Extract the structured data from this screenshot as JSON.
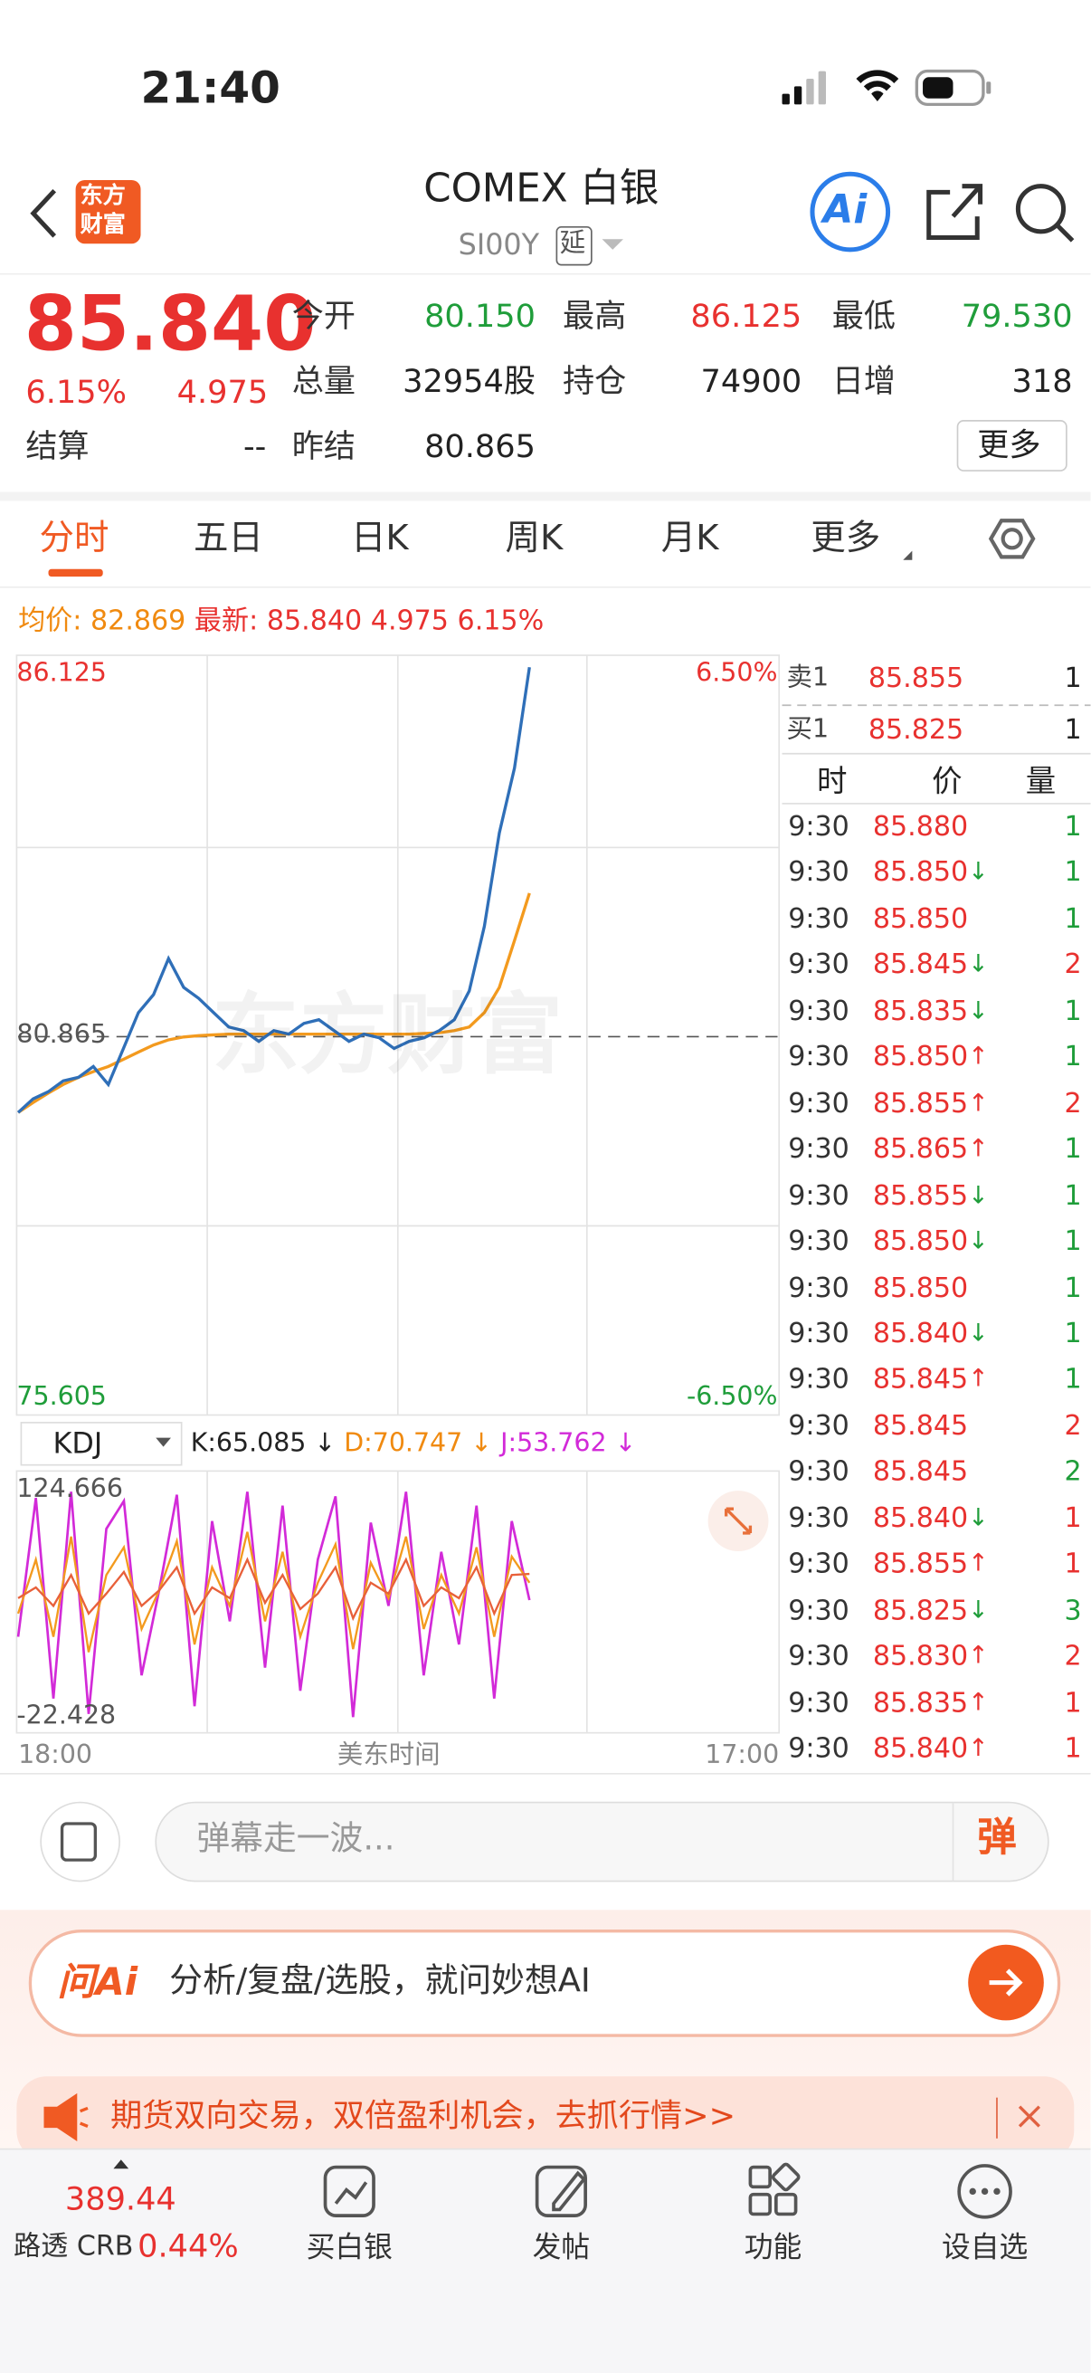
{
  "status_bar": {
    "time": "21:40"
  },
  "header": {
    "logo_top": "东方",
    "logo_bottom": "财富",
    "title": "COMEX 白银",
    "code": "SI00Y",
    "delay_badge": "延",
    "ai_button": "Ai"
  },
  "quote": {
    "price": "85.840",
    "change_pct": "6.15%",
    "change": "4.975",
    "more": "更多",
    "fields": [
      {
        "label": "今开",
        "value": "80.150",
        "color": "#1f9d3a"
      },
      {
        "label": "最高",
        "value": "86.125",
        "color": "#e8312f"
      },
      {
        "label": "最低",
        "value": "79.530",
        "color": "#1f9d3a"
      },
      {
        "label": "总量",
        "value": "32954股",
        "color": "#222222"
      },
      {
        "label": "持仓",
        "value": "74900",
        "color": "#222222"
      },
      {
        "label": "日增",
        "value": "318",
        "color": "#222222"
      },
      {
        "label": "结算",
        "value": "--",
        "color": "#222222"
      },
      {
        "label": "昨结",
        "value": "80.865",
        "color": "#222222"
      }
    ]
  },
  "tabs": [
    "分时",
    "五日",
    "日K",
    "周K",
    "月K",
    "更多"
  ],
  "intraday": {
    "legend": {
      "avg_label": "均价:",
      "avg": "82.869",
      "latest_label": "最新:",
      "latest": "85.840",
      "change": "4.975",
      "change_pct": "6.15%"
    },
    "watermark": "东方财富",
    "ylim": [
      75.605,
      86.125
    ],
    "yticks": [
      86.125,
      80.865,
      75.605
    ],
    "y2lim": [
      -6.5,
      6.5
    ],
    "y2ticks": [
      {
        "value": 6.5,
        "label": "6.50%"
      },
      {
        "value": -6.5,
        "label": "-6.50%"
      }
    ],
    "x_labels": [
      "18:00",
      "美东时间",
      "17:00"
    ],
    "price": {
      "name": "最新",
      "color": "#2f6fb8",
      "values": [
        79.81,
        80.0,
        80.1,
        80.25,
        80.3,
        80.45,
        80.2,
        80.7,
        81.2,
        81.45,
        81.95,
        81.55,
        81.4,
        81.2,
        81.0,
        80.95,
        80.8,
        80.95,
        80.9,
        81.05,
        81.1,
        80.95,
        80.8,
        80.9,
        80.85,
        80.7,
        80.8,
        80.85,
        80.95,
        81.1,
        81.5,
        82.4,
        83.7,
        84.6,
        86.0
      ]
    },
    "average": {
      "name": "均价",
      "color": "#f39a1e",
      "values": [
        79.81,
        79.95,
        80.08,
        80.2,
        80.3,
        80.38,
        80.45,
        80.55,
        80.65,
        80.75,
        80.82,
        80.86,
        80.88,
        80.89,
        80.9,
        80.9,
        80.9,
        80.9,
        80.9,
        80.9,
        80.9,
        80.9,
        80.9,
        80.9,
        80.9,
        80.9,
        80.9,
        80.91,
        80.92,
        80.95,
        81.0,
        81.2,
        81.55,
        82.2,
        82.86
      ]
    }
  },
  "kdj": {
    "selector": "KDJ",
    "k_text": "K:65.085 ↓",
    "d_text": "D:70.747 ↓",
    "j_text": "J:53.762 ↓",
    "ylim": [
      -22.428,
      124.666
    ],
    "yticks": [
      124.666,
      -22.428
    ],
    "k": {
      "color": "#f39a1e",
      "values": [
        45,
        80,
        30,
        95,
        20,
        70,
        88,
        35,
        60,
        92,
        25,
        75,
        50,
        98,
        40,
        85,
        30,
        65,
        90,
        22,
        78,
        55,
        95,
        35,
        70,
        45,
        88,
        30,
        82,
        65.085
      ]
    },
    "d": {
      "color": "#e8603a",
      "values": [
        55,
        62,
        50,
        70,
        45,
        58,
        72,
        50,
        60,
        75,
        45,
        62,
        55,
        80,
        52,
        70,
        48,
        58,
        75,
        42,
        65,
        58,
        80,
        50,
        62,
        55,
        75,
        45,
        70,
        70.747
      ]
    },
    "j": {
      "color": "#d22ad8",
      "values": [
        30,
        120,
        -10,
        124,
        -20,
        100,
        118,
        5,
        60,
        122,
        -15,
        105,
        40,
        124,
        10,
        115,
        -5,
        80,
        121,
        -22,
        104,
        50,
        124,
        5,
        85,
        25,
        115,
        -10,
        105,
        53.762
      ]
    }
  },
  "order_book": {
    "sell": {
      "label": "卖1",
      "price": "85.855",
      "volume": "1"
    },
    "buy": {
      "label": "买1",
      "price": "85.825",
      "volume": "1"
    }
  },
  "trades": {
    "headers": [
      "时",
      "价",
      "量"
    ],
    "rows": [
      {
        "time": "9:30",
        "price": "85.880",
        "volume": "1",
        "volume_color": "#1f9d3a"
      },
      {
        "time": "9:30",
        "price": "85.850",
        "arrow": "↓",
        "volume": "1",
        "volume_color": "#1f9d3a"
      },
      {
        "time": "9:30",
        "price": "85.850",
        "volume": "1",
        "volume_color": "#1f9d3a"
      },
      {
        "time": "9:30",
        "price": "85.845",
        "arrow": "↓",
        "volume": "2",
        "volume_color": "#e8312f"
      },
      {
        "time": "9:30",
        "price": "85.835",
        "arrow": "↓",
        "volume": "1",
        "volume_color": "#1f9d3a"
      },
      {
        "time": "9:30",
        "price": "85.850",
        "arrow": "↑",
        "volume": "1",
        "volume_color": "#1f9d3a"
      },
      {
        "time": "9:30",
        "price": "85.855",
        "arrow": "↑",
        "volume": "2",
        "volume_color": "#e8312f"
      },
      {
        "time": "9:30",
        "price": "85.865",
        "arrow": "↑",
        "volume": "1",
        "volume_color": "#1f9d3a"
      },
      {
        "time": "9:30",
        "price": "85.855",
        "arrow": "↓",
        "volume": "1",
        "volume_color": "#1f9d3a"
      },
      {
        "time": "9:30",
        "price": "85.850",
        "arrow": "↓",
        "volume": "1",
        "volume_color": "#1f9d3a"
      },
      {
        "time": "9:30",
        "price": "85.850",
        "volume": "1",
        "volume_color": "#1f9d3a"
      },
      {
        "time": "9:30",
        "price": "85.840",
        "arrow": "↓",
        "volume": "1",
        "volume_color": "#1f9d3a"
      },
      {
        "time": "9:30",
        "price": "85.845",
        "arrow": "↑",
        "volume": "1",
        "volume_color": "#1f9d3a"
      },
      {
        "time": "9:30",
        "price": "85.845",
        "volume": "2",
        "volume_color": "#e8312f"
      },
      {
        "time": "9:30",
        "price": "85.845",
        "volume": "2",
        "volume_color": "#1f9d3a"
      },
      {
        "time": "9:30",
        "price": "85.840",
        "arrow": "↓",
        "volume": "1",
        "volume_color": "#e8312f"
      },
      {
        "time": "9:30",
        "price": "85.855",
        "arrow": "↑",
        "volume": "1",
        "volume_color": "#e8312f"
      },
      {
        "time": "9:30",
        "price": "85.825",
        "arrow": "↓",
        "volume": "3",
        "volume_color": "#1f9d3a"
      },
      {
        "time": "9:30",
        "price": "85.830",
        "arrow": "↑",
        "volume": "2",
        "volume_color": "#e8312f"
      },
      {
        "time": "9:30",
        "price": "85.835",
        "arrow": "↑",
        "volume": "1",
        "volume_color": "#e8312f"
      },
      {
        "time": "9:30",
        "price": "85.840",
        "arrow": "↑",
        "volume": "1",
        "volume_color": "#e8312f"
      }
    ]
  },
  "comment_bar": {
    "placeholder": "弹幕走一波...",
    "danmu": "弹"
  },
  "ai_bar": {
    "logo": "问Ai",
    "text": "分析/复盘/选股，就问妙想AI"
  },
  "banner": {
    "text": "期货双向交易，双倍盈利机会，去抓行情>>"
  },
  "bottom_nav": {
    "index_value": "389.44",
    "index_name": "路透 CRB",
    "index_pct": "0.44%",
    "items": [
      "买白银",
      "发帖",
      "功能",
      "设自选"
    ]
  }
}
